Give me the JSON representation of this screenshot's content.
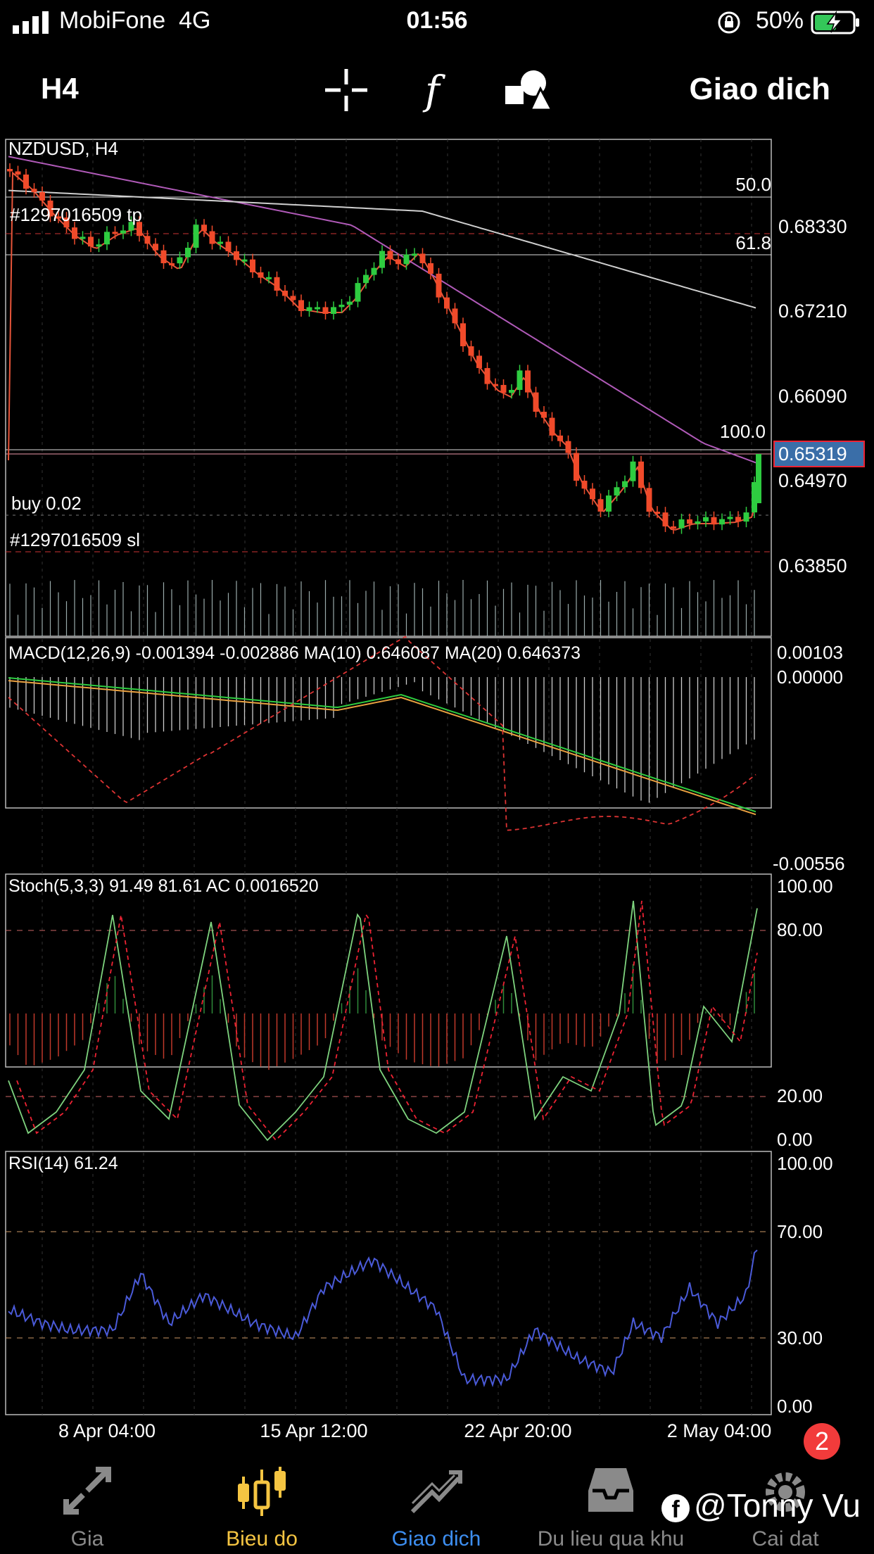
{
  "status_bar": {
    "carrier": "MobiFone",
    "network": "4G",
    "time": "01:56",
    "battery": "50%"
  },
  "toolbar": {
    "timeframe": "H4",
    "trade_label": "Giao dich",
    "icons": [
      "crosshair-icon",
      "function-icon",
      "objects-icon"
    ]
  },
  "chart": {
    "symbol_label": "NZDUSD, H4",
    "price_axis": [
      "0.68330",
      "0.67210",
      "0.66090",
      "0.64970",
      "0.63850"
    ],
    "current_price": "0.65319",
    "fib_levels": [
      "50.0",
      "61.8",
      "100.0"
    ],
    "tp_label": "#1297016509 tp",
    "sl_label": "#1297016509 sl",
    "position_label": "buy 0.02",
    "time_axis": [
      "8 Apr 04:00",
      "15 Apr 12:00",
      "22 Apr 20:00",
      "2 May 04:00"
    ],
    "macd": {
      "label": "MACD(12,26,9) -0.001394 -0.002886 MA(10) 0.646087 MA(20) 0.646373",
      "axis": [
        "0.00103",
        "0.00000",
        "-0.00556"
      ]
    },
    "stoch": {
      "label": "Stoch(5,3,3) 91.49 81.61 AC 0.0016520",
      "axis": [
        "100.00",
        "80.00",
        "20.00",
        "0.00"
      ]
    },
    "rsi": {
      "label": "RSI(14) 61.24",
      "axis": [
        "100.00",
        "70.00",
        "30.00",
        "0.00"
      ]
    },
    "colors": {
      "bull": "#2ecc40",
      "bear": "#f04a2a",
      "price_tag": "#3a6ea8",
      "ma_fast": "#e8553a",
      "ma_mid": "#b05ab8",
      "ma_slow": "#cfcfcf",
      "rsi": "#4a5ad8"
    }
  },
  "nav": {
    "items": [
      {
        "label": "Gia",
        "icon": "quotes-arrows-icon",
        "active": false
      },
      {
        "label": "Bieu do",
        "icon": "chart-candles-icon",
        "active": true
      },
      {
        "label": "Giao dich",
        "icon": "trade-trend-icon",
        "active": false
      },
      {
        "label": "Du lieu qua khu",
        "icon": "history-inbox-icon",
        "active": false
      },
      {
        "label": "Cai dat",
        "icon": "settings-gear-icon",
        "active": false
      }
    ],
    "badge": "2",
    "active_color": "#f5c542",
    "trade_color": "#3d8ef0",
    "inactive_color": "#8a8a8a"
  },
  "watermark": "@Tonny Vu"
}
